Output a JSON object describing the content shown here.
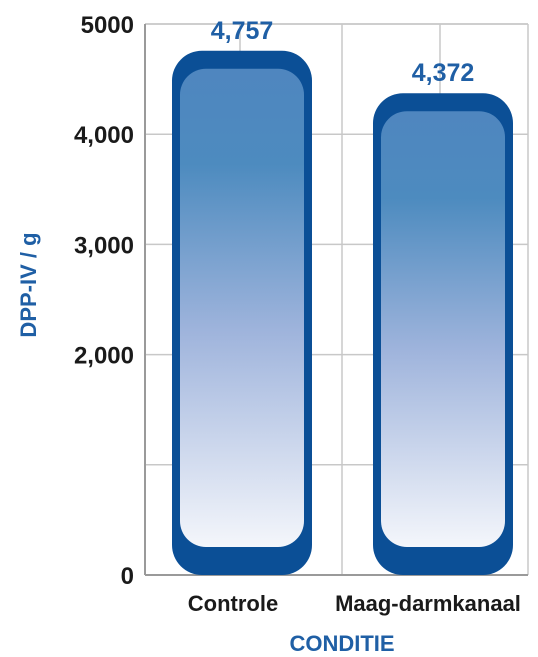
{
  "chart_data": {
    "type": "bar",
    "categories": [
      "Controle",
      "Maag-darmkanaal"
    ],
    "values": [
      4757,
      4372
    ],
    "value_labels": [
      "4,757",
      "4,372"
    ],
    "ylabel": "DPP-IV / g",
    "xlabel": "CONDITIE",
    "ylim": [
      0,
      5000
    ],
    "yticks": [
      {
        "value": 0,
        "label": "0"
      },
      {
        "value": 2000,
        "label": "2,000"
      },
      {
        "value": 3000,
        "label": "3,000"
      },
      {
        "value": 4000,
        "label": "4,000"
      },
      {
        "value": 5000,
        "label": "5000"
      }
    ],
    "grid": true,
    "colors": {
      "bar_dark": "#0b4f96",
      "bar_mid": "#4f86bf",
      "bar_light": "#f4f6fb",
      "label": "#1f5fa5",
      "grid": "#c8c8c8",
      "axis": "#9a9a9a"
    }
  }
}
